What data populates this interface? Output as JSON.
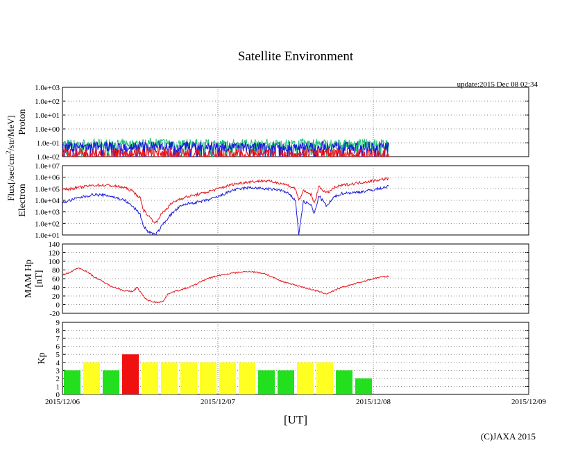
{
  "title": "Satellite Environment",
  "update": "update:2015 Dec 08 02:34",
  "copyright": "(C)JAXA 2015",
  "xlabel": "[UT]",
  "colors": {
    "red": "#e8141c",
    "blue": "#1a1ad8",
    "green": "#22c07a",
    "grid": "#888888",
    "kp_green": "#22e01e",
    "kp_yellow": "#ffff22",
    "kp_red": "#f01010"
  },
  "chart_data": [
    {
      "type": "line",
      "name": "proton",
      "ylabel": "Proton",
      "flux_label": "Flux[/sec/cm2/str/MeV]",
      "yscale": "log",
      "ylim_exp": [
        -2,
        3
      ],
      "yticks": [
        "1.0e-02",
        "1.0e-01",
        "1.0e+00",
        "1.0e+01",
        "1.0e+02",
        "1.0e+03"
      ],
      "xlim_days": [
        0,
        3
      ],
      "series": [
        {
          "name": "green channel",
          "color": "green",
          "x": [
            0,
            0.2,
            0.4,
            0.6,
            0.8,
            1.0,
            1.2,
            1.4,
            1.6,
            1.8,
            2.0,
            2.1
          ],
          "log10": [
            -1.1,
            -1.05,
            -1.1,
            -1.0,
            -1.05,
            -1.1,
            -1.05,
            -1.1,
            -1.05,
            -1.1,
            -1.05,
            -1.1
          ]
        },
        {
          "name": "blue channel",
          "color": "blue",
          "x": [
            0,
            0.2,
            0.4,
            0.6,
            0.8,
            1.0,
            1.2,
            1.4,
            1.6,
            1.8,
            2.0,
            2.1
          ],
          "log10": [
            -1.3,
            -1.25,
            -1.3,
            -1.2,
            -1.25,
            -1.3,
            -1.3,
            -1.25,
            -1.3,
            -1.25,
            -1.3,
            -1.25
          ]
        },
        {
          "name": "red channel",
          "color": "red",
          "x": [
            0,
            0.2,
            0.4,
            0.6,
            0.8,
            1.0,
            1.2,
            1.4,
            1.6,
            1.8,
            2.0,
            2.1
          ],
          "log10": [
            -1.7,
            -1.75,
            -1.8,
            -1.7,
            -1.75,
            -1.8,
            -1.75,
            -1.8,
            -1.7,
            -1.75,
            -1.8,
            -1.75
          ]
        }
      ]
    },
    {
      "type": "line",
      "name": "electron",
      "ylabel": "Electron",
      "yscale": "log",
      "ylim_exp": [
        1,
        7
      ],
      "yticks": [
        "1.0e+01",
        "1.0e+02",
        "1.0e+03",
        "1.0e+04",
        "1.0e+05",
        "1.0e+06",
        "1.0e+07"
      ],
      "xlim_days": [
        0,
        3
      ],
      "series": [
        {
          "name": "red channel",
          "color": "red",
          "x": [
            0,
            0.1,
            0.2,
            0.3,
            0.4,
            0.45,
            0.5,
            0.52,
            0.55,
            0.6,
            0.62,
            0.65,
            0.7,
            0.75,
            0.8,
            0.9,
            1.0,
            1.1,
            1.2,
            1.3,
            1.4,
            1.45,
            1.5,
            1.52,
            1.55,
            1.6,
            1.62,
            1.65,
            1.7,
            1.75,
            1.8,
            1.9,
            2.0,
            2.1
          ],
          "log10": [
            4.9,
            5.1,
            5.3,
            5.3,
            5.1,
            4.8,
            4.2,
            3.2,
            2.7,
            2.0,
            2.5,
            3.0,
            3.7,
            4.1,
            4.3,
            4.6,
            5.0,
            5.4,
            5.6,
            5.7,
            5.5,
            5.3,
            5.0,
            4.0,
            4.8,
            4.5,
            3.7,
            5.2,
            4.6,
            5.1,
            5.3,
            5.5,
            5.7,
            5.9
          ]
        },
        {
          "name": "blue channel",
          "color": "blue",
          "x": [
            0,
            0.1,
            0.2,
            0.3,
            0.4,
            0.45,
            0.5,
            0.52,
            0.55,
            0.6,
            0.62,
            0.65,
            0.7,
            0.75,
            0.8,
            0.9,
            1.0,
            1.1,
            1.2,
            1.3,
            1.4,
            1.45,
            1.5,
            1.52,
            1.55,
            1.6,
            1.62,
            1.65,
            1.7,
            1.75,
            1.8,
            1.9,
            2.0,
            2.1
          ],
          "log10": [
            3.8,
            4.2,
            4.5,
            4.4,
            4.0,
            3.5,
            2.8,
            1.8,
            1.3,
            1.0,
            1.4,
            2.0,
            2.8,
            3.4,
            3.7,
            3.9,
            4.3,
            4.9,
            5.1,
            5.0,
            4.9,
            4.6,
            4.0,
            1.0,
            3.9,
            3.6,
            2.8,
            4.4,
            3.5,
            4.3,
            4.6,
            4.7,
            4.9,
            5.2
          ]
        }
      ]
    },
    {
      "type": "line",
      "name": "mam_hp",
      "ylabel": "MAM Hp",
      "ylabel2": "[nT]",
      "ylim": [
        -20,
        140
      ],
      "yticks": [
        -20,
        0,
        20,
        40,
        60,
        80,
        100,
        120,
        140
      ],
      "xlim_days": [
        0,
        3
      ],
      "series": [
        {
          "name": "Hp",
          "color": "red",
          "x": [
            0,
            0.05,
            0.1,
            0.15,
            0.2,
            0.25,
            0.3,
            0.35,
            0.4,
            0.45,
            0.48,
            0.5,
            0.53,
            0.55,
            0.6,
            0.65,
            0.68,
            0.7,
            0.75,
            0.8,
            0.85,
            0.9,
            0.95,
            1.0,
            1.05,
            1.1,
            1.2,
            1.3,
            1.4,
            1.5,
            1.55,
            1.6,
            1.65,
            1.7,
            1.8,
            1.9,
            2.0,
            2.05,
            2.1
          ],
          "y": [
            68,
            75,
            85,
            78,
            65,
            55,
            45,
            38,
            32,
            30,
            40,
            30,
            15,
            10,
            5,
            8,
            25,
            28,
            33,
            38,
            45,
            55,
            62,
            67,
            70,
            73,
            77,
            72,
            55,
            45,
            40,
            35,
            30,
            25,
            40,
            50,
            60,
            64,
            65
          ]
        }
      ]
    },
    {
      "type": "bar",
      "name": "kp",
      "ylabel": "Kp",
      "ylim": [
        0,
        9
      ],
      "yticks": [
        0,
        1,
        2,
        3,
        4,
        5,
        6,
        7,
        8,
        9
      ],
      "xlim_days": [
        0,
        3
      ],
      "bar_width_days": 0.125,
      "values": [
        3,
        4,
        3,
        5,
        4,
        4,
        4,
        4,
        4,
        4,
        3,
        3,
        4,
        4,
        3,
        2
      ],
      "bar_colors": [
        "kp_green",
        "kp_yellow",
        "kp_green",
        "kp_red",
        "kp_yellow",
        "kp_yellow",
        "kp_yellow",
        "kp_yellow",
        "kp_yellow",
        "kp_yellow",
        "kp_green",
        "kp_green",
        "kp_yellow",
        "kp_yellow",
        "kp_green",
        "kp_green"
      ]
    }
  ],
  "x_ticks": [
    "2015/12/06",
    "2015/12/07",
    "2015/12/08",
    "2015/12/09"
  ]
}
